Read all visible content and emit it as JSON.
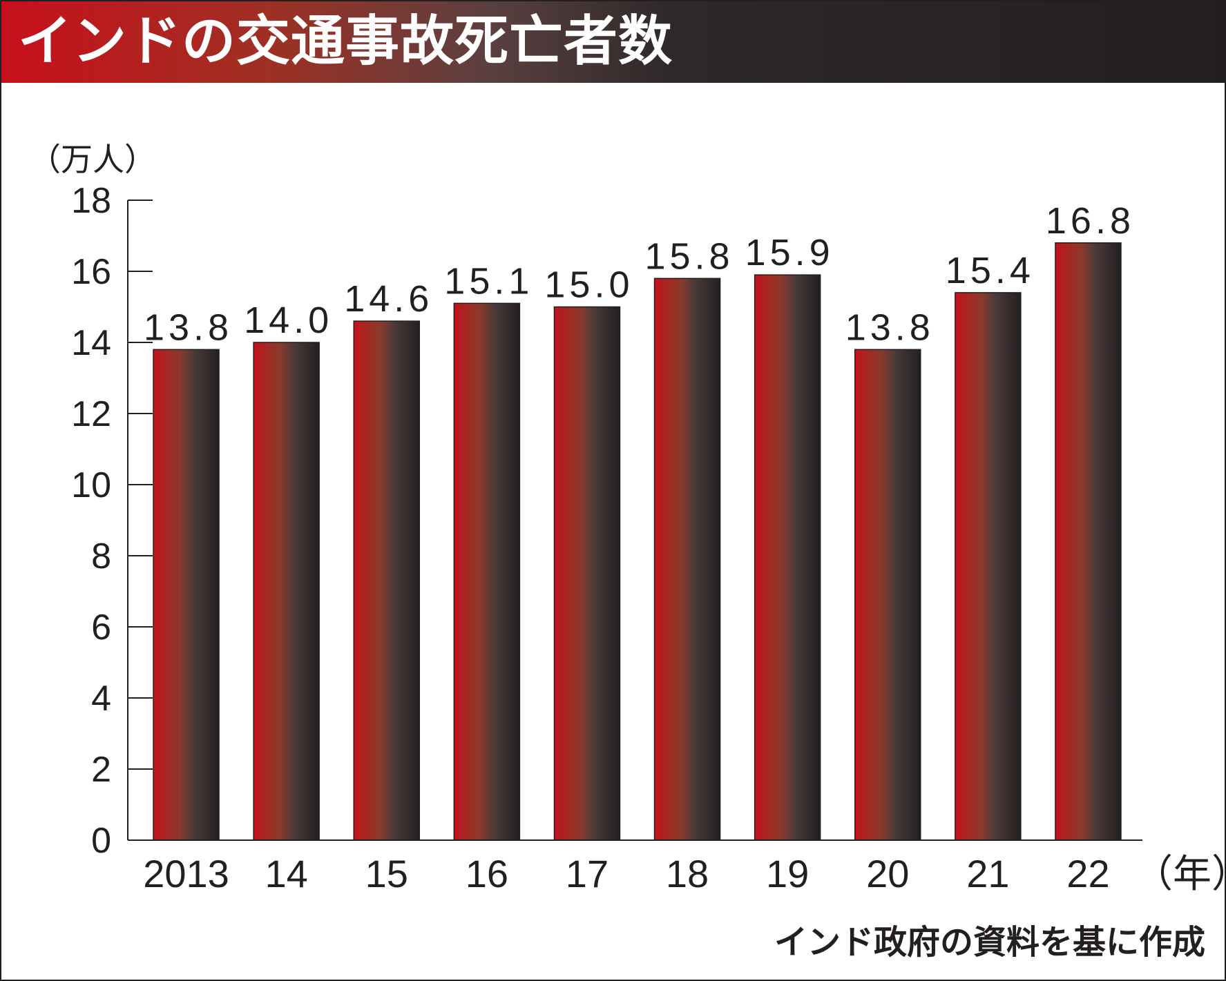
{
  "header": {
    "title": "インドの交通事故死亡者数"
  },
  "footer": {
    "source": "インド政府の資料を基に作成"
  },
  "colors": {
    "bar_left": "#c8101c",
    "bar_mid": "#8a3a2c",
    "bar_right": "#231f20",
    "axis": "#231f20"
  },
  "chart_data": {
    "type": "bar",
    "categories": [
      "2013",
      "14",
      "15",
      "16",
      "17",
      "18",
      "19",
      "20",
      "21",
      "22"
    ],
    "values": [
      13.8,
      14.0,
      14.6,
      15.1,
      15.0,
      15.8,
      15.9,
      13.8,
      15.4,
      16.8
    ],
    "value_labels": [
      "13.8",
      "14.0",
      "14.6",
      "15.1",
      "15.0",
      "15.8",
      "15.9",
      "13.8",
      "15.4",
      "16.8"
    ],
    "y_ticks": [
      0,
      2,
      4,
      6,
      8,
      10,
      12,
      14,
      16,
      18
    ],
    "ylim": [
      0,
      18
    ],
    "ylabel": "（万人）",
    "xlabel": "（年）",
    "title": "インドの交通事故死亡者数",
    "grid": false,
    "legend": "none"
  }
}
